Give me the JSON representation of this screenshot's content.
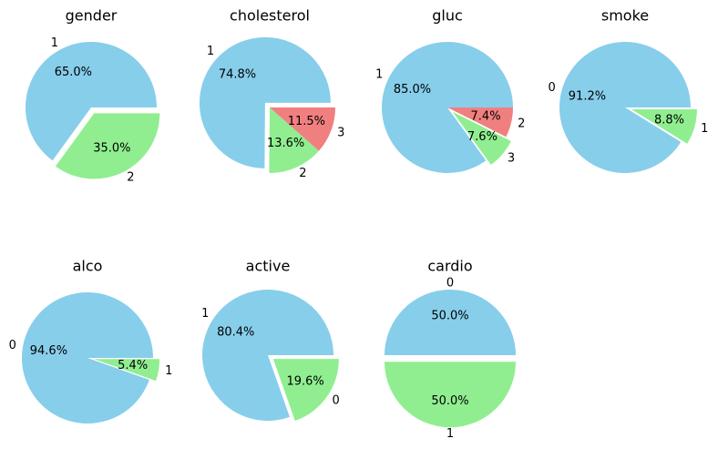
{
  "chart_data": [
    {
      "type": "pie",
      "title": "gender",
      "slices": [
        {
          "label": "1",
          "value": 65.0,
          "pct_label": "65.0%",
          "color": "#87CEEB"
        },
        {
          "label": "2",
          "value": 35.0,
          "pct_label": "35.0%",
          "color": "#90EE90"
        }
      ],
      "explode": [
        0,
        0.1
      ]
    },
    {
      "type": "pie",
      "title": "cholesterol",
      "slices": [
        {
          "label": "1",
          "value": 74.8,
          "pct_label": "74.8%",
          "color": "#87CEEB"
        },
        {
          "label": "2",
          "value": 13.6,
          "pct_label": "13.6%",
          "color": "#90EE90"
        },
        {
          "label": "3",
          "value": 11.5,
          "pct_label": "11.5%",
          "color": "#F08080"
        }
      ],
      "explode": [
        0.1,
        0,
        0
      ]
    },
    {
      "type": "pie",
      "title": "gluc",
      "slices": [
        {
          "label": "1",
          "value": 85.0,
          "pct_label": "85.0%",
          "color": "#87CEEB"
        },
        {
          "label": "3",
          "value": 7.6,
          "pct_label": "7.6%",
          "color": "#90EE90"
        },
        {
          "label": "2",
          "value": 7.4,
          "pct_label": "7.4%",
          "color": "#F08080"
        }
      ],
      "explode": [
        0,
        0.1,
        0
      ]
    },
    {
      "type": "pie",
      "title": "smoke",
      "slices": [
        {
          "label": "0",
          "value": 91.2,
          "pct_label": "91.2%",
          "color": "#87CEEB"
        },
        {
          "label": "1",
          "value": 8.8,
          "pct_label": "8.8%",
          "color": "#90EE90"
        }
      ],
      "explode": [
        0,
        0.1
      ]
    },
    {
      "type": "pie",
      "title": "alco",
      "slices": [
        {
          "label": "0",
          "value": 94.6,
          "pct_label": "94.6%",
          "color": "#87CEEB"
        },
        {
          "label": "1",
          "value": 5.4,
          "pct_label": "5.4%",
          "color": "#90EE90"
        }
      ],
      "explode": [
        0,
        0.1
      ]
    },
    {
      "type": "pie",
      "title": "active",
      "slices": [
        {
          "label": "1",
          "value": 80.4,
          "pct_label": "80.4%",
          "color": "#87CEEB"
        },
        {
          "label": "0",
          "value": 19.6,
          "pct_label": "19.6%",
          "color": "#90EE90"
        }
      ],
      "explode": [
        0,
        0.1
      ]
    },
    {
      "type": "pie",
      "title": "cardio",
      "slices": [
        {
          "label": "0",
          "value": 50.0,
          "pct_label": "50.0%",
          "color": "#87CEEB"
        },
        {
          "label": "1",
          "value": 50.0,
          "pct_label": "50.0%",
          "color": "#90EE90"
        }
      ],
      "explode": [
        0,
        0.1
      ]
    }
  ]
}
